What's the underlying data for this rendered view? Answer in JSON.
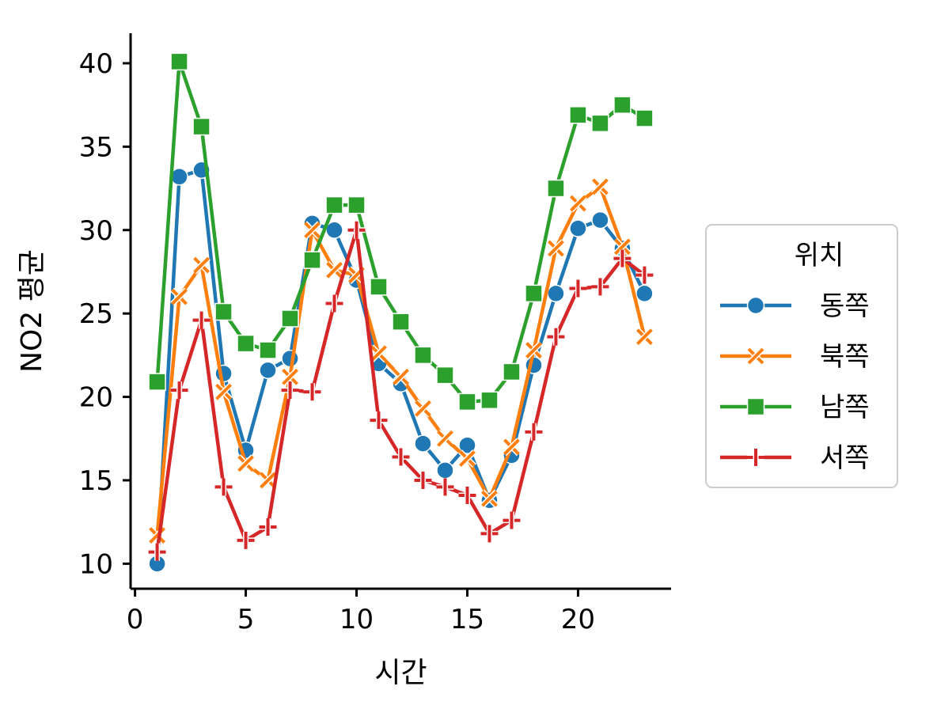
{
  "chart_data": {
    "type": "line",
    "xlabel": "시간",
    "ylabel": "NO2 평균",
    "xlim": [
      -0.2,
      24.2
    ],
    "ylim": [
      8.5,
      41.8
    ],
    "xticks": [
      0,
      5,
      10,
      15,
      20
    ],
    "yticks": [
      10,
      15,
      20,
      25,
      30,
      35,
      40
    ],
    "grid": false,
    "legend": {
      "title": "위치",
      "placement": "center-right-outside"
    },
    "x": [
      1,
      2,
      3,
      4,
      5,
      6,
      7,
      8,
      9,
      10,
      11,
      12,
      13,
      14,
      15,
      16,
      17,
      18,
      19,
      20,
      21,
      22,
      23
    ],
    "series": [
      {
        "name": "동쪽",
        "color": "#1f77b4",
        "marker": "circle",
        "values": [
          10.0,
          33.2,
          33.6,
          21.4,
          16.8,
          21.6,
          22.3,
          30.4,
          30.0,
          27.0,
          22.0,
          20.8,
          17.2,
          15.6,
          17.1,
          13.8,
          16.5,
          21.9,
          26.2,
          30.1,
          30.6,
          28.9,
          26.2
        ]
      },
      {
        "name": "북쪽",
        "color": "#ff7f0e",
        "marker": "x",
        "values": [
          11.7,
          26.0,
          27.9,
          20.3,
          16.0,
          15.0,
          21.2,
          30.0,
          27.6,
          27.3,
          22.6,
          21.2,
          19.3,
          17.5,
          16.3,
          13.9,
          17.0,
          22.8,
          28.9,
          31.6,
          32.6,
          29.0,
          23.6
        ]
      },
      {
        "name": "남쪽",
        "color": "#2ca02c",
        "marker": "square",
        "values": [
          20.9,
          40.1,
          36.2,
          25.1,
          23.2,
          22.8,
          24.7,
          28.2,
          31.5,
          31.5,
          26.6,
          24.5,
          22.5,
          21.3,
          19.7,
          19.8,
          21.5,
          26.2,
          32.5,
          36.9,
          36.4,
          37.5,
          36.7
        ]
      },
      {
        "name": "서쪽",
        "color": "#d62728",
        "marker": "plus",
        "values": [
          10.7,
          20.4,
          24.6,
          14.6,
          11.4,
          12.2,
          20.4,
          20.3,
          25.6,
          30.0,
          18.6,
          16.4,
          15.0,
          14.6,
          14.1,
          11.8,
          12.6,
          17.9,
          23.6,
          26.5,
          26.6,
          28.3,
          27.3
        ]
      }
    ]
  }
}
